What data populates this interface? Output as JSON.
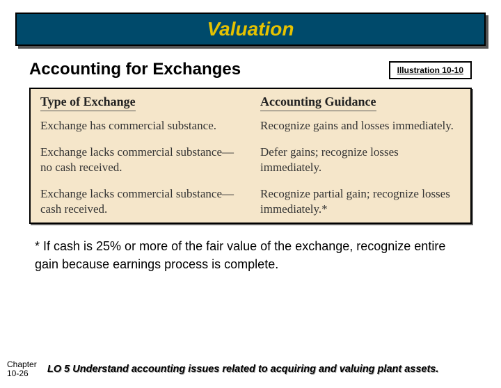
{
  "header": {
    "title": "Valuation"
  },
  "subheader": {
    "text": "Accounting for Exchanges"
  },
  "illustration": {
    "label": "Illustration 10-10"
  },
  "table": {
    "columns": [
      "Type of Exchange",
      "Accounting Guidance"
    ],
    "rows": [
      [
        "Exchange has commercial substance.",
        "Recognize gains and losses immediately."
      ],
      [
        "Exchange lacks commercial substance—no cash received.",
        "Defer gains; recognize losses immediately."
      ],
      [
        "Exchange lacks commercial substance—cash received.",
        "Recognize partial gain; recognize losses immediately.*"
      ]
    ],
    "background_color": "#f5e6ca",
    "header_fontsize": 18,
    "cell_fontsize": 17
  },
  "footnote": {
    "text": "* If cash is 25% or more of the fair value of the exchange, recognize entire gain because earnings process is complete."
  },
  "footer": {
    "chapter_line1": "Chapter",
    "chapter_line2": "10-26",
    "lo_text": "LO 5 Understand accounting issues related to acquiring and valuing plant assets."
  },
  "colors": {
    "header_bg": "#004a6b",
    "header_text": "#e6c200",
    "table_bg": "#f5e6ca"
  }
}
